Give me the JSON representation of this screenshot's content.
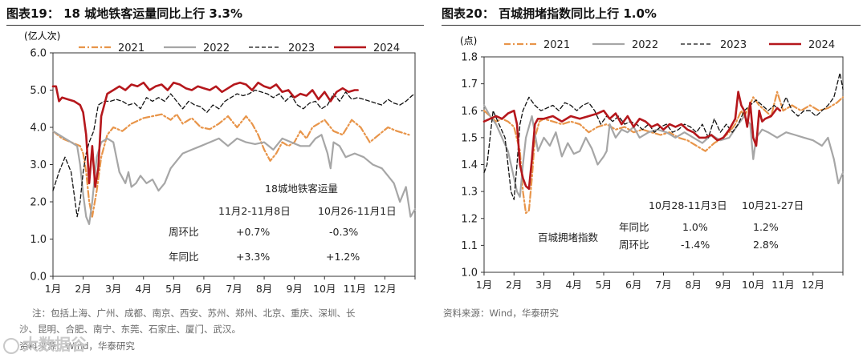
{
  "left_figure": {
    "title": "图表19： 18 城地铁客运量同比上行 3.3%",
    "notes": [
      "注：包括上海、广州、成都、南京、西安、苏州、郑州、北京、重庆、深圳、长",
      "沙、昆明、合肥、南宁、东莞、石家庄、厦门、武汉。",
      "资料来源：Wind，华泰研究"
    ],
    "watermark": "大数据谷"
  },
  "right_figure": {
    "title": "图表20： 百城拥堵指数同比上行 1.0%",
    "notes": [
      "资料来源：Wind，华泰研究"
    ]
  },
  "colors": {
    "2021": "#e8954a",
    "2022": "#a6a6a6",
    "2023": "#111111",
    "2024": "#b5171c"
  },
  "chart_data": [
    {
      "type": "line",
      "title": "18城地铁客运量",
      "ylabel": "(亿人次)",
      "ylim": [
        0,
        6
      ],
      "yticks": [
        "0.0",
        "1.0",
        "2.0",
        "3.0",
        "4.0",
        "5.0",
        "6.0"
      ],
      "categories": [
        "1月",
        "2月",
        "3月",
        "4月",
        "5月",
        "6月",
        "7月",
        "8月",
        "9月",
        "10月",
        "11月",
        "12月"
      ],
      "x_domain": [
        1,
        13
      ],
      "legend": [
        "2021",
        "2022",
        "2023",
        "2024"
      ],
      "legend_position": "top",
      "series": [
        {
          "name": "2021",
          "x": [
            1,
            1.3,
            1.6,
            1.9,
            2.0,
            2.1,
            2.2,
            2.3,
            2.45,
            2.6,
            2.8,
            3.0,
            3.3,
            3.6,
            4.0,
            4.3,
            4.6,
            4.9,
            5.1,
            5.3,
            5.6,
            5.9,
            6.2,
            6.5,
            6.8,
            7.1,
            7.4,
            7.6,
            7.8,
            8.0,
            8.2,
            8.4,
            8.6,
            8.8,
            9.0,
            9.2,
            9.4,
            9.6,
            9.8,
            10.0,
            10.3,
            10.6,
            10.9,
            11.2,
            11.5,
            11.8,
            12.1,
            12.4,
            12.8
          ],
          "y": [
            3.9,
            3.7,
            3.6,
            3.5,
            3.3,
            2.8,
            2.0,
            1.6,
            2.3,
            3.2,
            3.8,
            4.0,
            3.9,
            4.1,
            4.25,
            4.3,
            4.35,
            4.2,
            4.35,
            4.1,
            4.25,
            4.0,
            3.95,
            4.1,
            4.3,
            4.0,
            4.3,
            4.1,
            3.8,
            3.4,
            3.1,
            3.3,
            3.6,
            3.5,
            3.6,
            3.9,
            3.7,
            4.0,
            4.1,
            4.2,
            3.9,
            3.8,
            4.2,
            4.0,
            3.6,
            3.8,
            4.0,
            3.9,
            3.8
          ]
        },
        {
          "name": "2022",
          "x": [
            1,
            1.2,
            1.4,
            1.6,
            1.8,
            1.9,
            2.0,
            2.1,
            2.2,
            2.3,
            2.45,
            2.6,
            2.8,
            3.0,
            3.2,
            3.4,
            3.5,
            3.6,
            3.75,
            3.9,
            4.1,
            4.3,
            4.5,
            4.7,
            4.9,
            5.1,
            5.3,
            5.6,
            5.9,
            6.2,
            6.5,
            6.8,
            7.1,
            7.4,
            7.7,
            8.0,
            8.3,
            8.6,
            8.9,
            9.2,
            9.5,
            9.7,
            9.9,
            10.1,
            10.2,
            10.3,
            10.5,
            10.7,
            11.0,
            11.3,
            11.6,
            11.9,
            12.1,
            12.3,
            12.5,
            12.7,
            12.85,
            13.0
          ],
          "y": [
            3.9,
            3.8,
            3.7,
            3.6,
            3.5,
            3.0,
            2.2,
            1.6,
            1.4,
            2.0,
            3.2,
            3.6,
            3.7,
            3.6,
            2.8,
            2.5,
            2.8,
            2.4,
            2.5,
            2.7,
            2.5,
            2.6,
            2.3,
            2.5,
            2.9,
            3.1,
            3.3,
            3.4,
            3.5,
            3.6,
            3.7,
            3.5,
            3.7,
            3.6,
            3.55,
            3.6,
            3.4,
            3.7,
            3.6,
            3.5,
            3.5,
            3.7,
            3.8,
            3.3,
            2.9,
            3.6,
            3.5,
            3.2,
            3.3,
            3.2,
            3.0,
            2.9,
            2.7,
            2.5,
            2.0,
            2.4,
            1.6,
            1.8
          ]
        },
        {
          "name": "2023",
          "x": [
            1,
            1.2,
            1.4,
            1.6,
            1.8,
            1.9,
            2.0,
            2.1,
            2.2,
            2.35,
            2.5,
            2.7,
            2.9,
            3.1,
            3.3,
            3.5,
            3.7,
            3.9,
            4.1,
            4.3,
            4.5,
            4.7,
            4.9,
            5.1,
            5.3,
            5.5,
            5.7,
            5.9,
            6.1,
            6.3,
            6.5,
            6.7,
            6.9,
            7.1,
            7.3,
            7.5,
            7.7,
            7.9,
            8.1,
            8.3,
            8.5,
            8.7,
            8.9,
            9.1,
            9.3,
            9.5,
            9.7,
            9.9,
            10.1,
            10.3,
            10.5,
            10.7,
            10.9,
            11.1,
            11.3,
            11.5,
            11.7,
            11.9,
            12.1,
            12.3,
            12.5,
            12.7,
            12.9,
            13.0
          ],
          "y": [
            2.3,
            2.8,
            3.2,
            2.8,
            1.6,
            2.0,
            2.8,
            3.3,
            3.6,
            3.9,
            4.6,
            4.7,
            4.7,
            4.75,
            4.7,
            4.6,
            4.65,
            4.5,
            4.8,
            4.7,
            4.8,
            4.7,
            4.9,
            4.7,
            4.5,
            4.7,
            4.6,
            4.55,
            4.4,
            4.6,
            4.5,
            4.7,
            4.8,
            4.9,
            4.85,
            4.9,
            5.0,
            4.95,
            4.9,
            4.8,
            4.9,
            4.7,
            4.85,
            4.6,
            4.5,
            4.65,
            4.7,
            4.5,
            4.6,
            4.9,
            4.7,
            4.95,
            4.75,
            4.8,
            4.75,
            4.7,
            4.65,
            4.6,
            4.75,
            4.65,
            4.6,
            4.7,
            4.85,
            4.9
          ]
        },
        {
          "name": "2024",
          "x": [
            1,
            1.1,
            1.2,
            1.3,
            1.5,
            1.7,
            1.9,
            2.0,
            2.1,
            2.2,
            2.3,
            2.4,
            2.5,
            2.6,
            2.8,
            3.0,
            3.2,
            3.4,
            3.6,
            3.8,
            4.0,
            4.2,
            4.4,
            4.6,
            4.8,
            5.0,
            5.2,
            5.4,
            5.6,
            5.8,
            6.0,
            6.2,
            6.4,
            6.6,
            6.8,
            7.0,
            7.2,
            7.4,
            7.6,
            7.8,
            8.0,
            8.2,
            8.4,
            8.6,
            8.8,
            9.0,
            9.2,
            9.4,
            9.6,
            9.8,
            10.0,
            10.2,
            10.4,
            10.6,
            10.8,
            11.0,
            11.1
          ],
          "y": [
            5.1,
            5.1,
            4.7,
            4.8,
            4.75,
            4.7,
            4.6,
            4.4,
            3.8,
            2.5,
            3.5,
            2.4,
            2.9,
            4.3,
            4.9,
            5.0,
            5.1,
            5.0,
            5.15,
            5.1,
            5.2,
            5.0,
            5.1,
            5.15,
            5.0,
            5.2,
            5.15,
            5.05,
            5.0,
            5.1,
            5.05,
            5.0,
            5.1,
            4.95,
            5.05,
            5.15,
            5.2,
            5.15,
            5.0,
            5.2,
            5.1,
            5.05,
            5.15,
            4.95,
            5.0,
            4.8,
            4.9,
            4.85,
            5.0,
            4.75,
            4.95,
            4.7,
            4.95,
            5.05,
            4.95,
            5.0,
            5.0
          ]
        }
      ],
      "table": {
        "col1": "11月2-11月8日",
        "col2": "10月26-11月1日",
        "rows": [
          {
            "label": "周环比",
            "v1": "+0.7%",
            "v2": "-0.3%"
          },
          {
            "label": "年同比",
            "v1": "+3.3%",
            "v2": "+1.2%"
          }
        ]
      }
    },
    {
      "type": "line",
      "title": "百城拥堵指数",
      "ylabel": "(点)",
      "ylim": [
        1.0,
        1.8
      ],
      "yticks": [
        "1.0",
        "1.1",
        "1.2",
        "1.3",
        "1.4",
        "1.5",
        "1.6",
        "1.7",
        "1.8"
      ],
      "categories": [
        "1月",
        "2月",
        "3月",
        "4月",
        "5月",
        "6月",
        "7月",
        "8月",
        "9月",
        "10月",
        "11月",
        "12月"
      ],
      "x_domain": [
        1,
        13
      ],
      "legend": [
        "2021",
        "2022",
        "2023",
        "2024"
      ],
      "legend_position": "top",
      "series": [
        {
          "name": "2021",
          "x": [
            1,
            1.2,
            1.4,
            1.6,
            1.8,
            2.0,
            2.2,
            2.3,
            2.4,
            2.5,
            2.6,
            2.7,
            2.85,
            3.0,
            3.3,
            3.6,
            3.9,
            4.2,
            4.5,
            4.8,
            5.1,
            5.4,
            5.7,
            6.0,
            6.3,
            6.6,
            6.9,
            7.2,
            7.5,
            7.8,
            8.1,
            8.4,
            8.7,
            9.0,
            9.2,
            9.4,
            9.6,
            9.7,
            9.8,
            10.0,
            10.2,
            10.4,
            10.6,
            10.8,
            11.0,
            11.3,
            11.6,
            11.9,
            12.2,
            12.5,
            12.8,
            13.0
          ],
          "y": [
            1.6,
            1.58,
            1.56,
            1.57,
            1.56,
            1.54,
            1.45,
            1.3,
            1.22,
            1.23,
            1.35,
            1.5,
            1.56,
            1.57,
            1.56,
            1.55,
            1.56,
            1.55,
            1.52,
            1.54,
            1.55,
            1.53,
            1.54,
            1.52,
            1.53,
            1.52,
            1.51,
            1.52,
            1.5,
            1.49,
            1.47,
            1.45,
            1.48,
            1.5,
            1.52,
            1.55,
            1.6,
            1.58,
            1.6,
            1.65,
            1.62,
            1.6,
            1.58,
            1.67,
            1.6,
            1.62,
            1.6,
            1.62,
            1.6,
            1.61,
            1.63,
            1.65
          ]
        },
        {
          "name": "2022",
          "x": [
            1,
            1.2,
            1.4,
            1.6,
            1.8,
            2.0,
            2.1,
            2.2,
            2.3,
            2.4,
            2.6,
            2.8,
            3.0,
            3.2,
            3.4,
            3.6,
            3.8,
            4.0,
            4.2,
            4.4,
            4.6,
            4.8,
            5.0,
            5.1,
            5.2,
            5.4,
            5.6,
            5.8,
            6.0,
            6.2,
            6.5,
            6.8,
            7.1,
            7.4,
            7.7,
            8.0,
            8.3,
            8.6,
            8.9,
            9.2,
            9.5,
            9.7,
            9.9,
            10.0,
            10.1,
            10.3,
            10.5,
            10.8,
            11.1,
            11.4,
            11.7,
            12.0,
            12.3,
            12.5,
            12.7,
            12.85,
            13.0
          ],
          "y": [
            1.62,
            1.58,
            1.55,
            1.5,
            1.45,
            1.35,
            1.3,
            1.28,
            1.4,
            1.5,
            1.58,
            1.45,
            1.5,
            1.47,
            1.52,
            1.43,
            1.48,
            1.44,
            1.45,
            1.5,
            1.46,
            1.4,
            1.43,
            1.45,
            1.55,
            1.5,
            1.53,
            1.52,
            1.54,
            1.5,
            1.52,
            1.53,
            1.52,
            1.5,
            1.52,
            1.5,
            1.48,
            1.51,
            1.49,
            1.5,
            1.55,
            1.58,
            1.55,
            1.42,
            1.5,
            1.53,
            1.52,
            1.5,
            1.52,
            1.51,
            1.5,
            1.49,
            1.47,
            1.5,
            1.42,
            1.33,
            1.37
          ]
        },
        {
          "name": "2023",
          "x": [
            1,
            1.1,
            1.3,
            1.5,
            1.7,
            1.9,
            2.0,
            2.1,
            2.2,
            2.3,
            2.5,
            2.7,
            2.9,
            3.1,
            3.3,
            3.5,
            3.7,
            3.9,
            4.1,
            4.3,
            4.5,
            4.7,
            4.9,
            5.1,
            5.3,
            5.5,
            5.7,
            5.9,
            6.1,
            6.3,
            6.5,
            6.7,
            6.9,
            7.1,
            7.3,
            7.5,
            7.7,
            7.9,
            8.1,
            8.3,
            8.5,
            8.7,
            8.9,
            9.1,
            9.3,
            9.5,
            9.7,
            9.9,
            10.1,
            10.3,
            10.5,
            10.7,
            10.9,
            11.1,
            11.3,
            11.5,
            11.7,
            11.9,
            12.1,
            12.3,
            12.5,
            12.7,
            12.9,
            13.0
          ],
          "y": [
            1.37,
            1.4,
            1.6,
            1.55,
            1.5,
            1.3,
            1.27,
            1.4,
            1.55,
            1.6,
            1.65,
            1.62,
            1.6,
            1.61,
            1.62,
            1.6,
            1.63,
            1.62,
            1.6,
            1.62,
            1.63,
            1.6,
            1.55,
            1.58,
            1.56,
            1.58,
            1.55,
            1.56,
            1.55,
            1.53,
            1.55,
            1.52,
            1.54,
            1.55,
            1.52,
            1.53,
            1.55,
            1.54,
            1.52,
            1.55,
            1.5,
            1.57,
            1.52,
            1.55,
            1.52,
            1.55,
            1.6,
            1.62,
            1.64,
            1.62,
            1.6,
            1.62,
            1.6,
            1.65,
            1.6,
            1.58,
            1.6,
            1.6,
            1.58,
            1.6,
            1.62,
            1.65,
            1.74,
            1.68
          ]
        },
        {
          "name": "2024",
          "x": [
            1,
            1.2,
            1.4,
            1.6,
            1.8,
            2.0,
            2.1,
            2.2,
            2.3,
            2.4,
            2.5,
            2.6,
            2.7,
            2.8,
            3.0,
            3.3,
            3.6,
            3.9,
            4.2,
            4.5,
            4.8,
            5.0,
            5.2,
            5.4,
            5.6,
            5.8,
            6.0,
            6.2,
            6.4,
            6.6,
            6.8,
            7.0,
            7.2,
            7.4,
            7.6,
            7.8,
            8.0,
            8.2,
            8.4,
            8.6,
            8.8,
            9.0,
            9.2,
            9.4,
            9.5,
            9.6,
            9.7,
            9.8,
            9.9,
            10.0,
            10.1,
            10.2,
            10.3,
            10.4,
            10.6,
            10.8,
            10.9
          ],
          "y": [
            1.56,
            1.57,
            1.58,
            1.57,
            1.59,
            1.6,
            1.55,
            1.4,
            1.35,
            1.32,
            1.31,
            1.42,
            1.55,
            1.57,
            1.57,
            1.58,
            1.56,
            1.58,
            1.57,
            1.58,
            1.59,
            1.6,
            1.57,
            1.59,
            1.55,
            1.58,
            1.54,
            1.57,
            1.56,
            1.54,
            1.55,
            1.53,
            1.55,
            1.54,
            1.55,
            1.53,
            1.52,
            1.5,
            1.5,
            1.51,
            1.49,
            1.5,
            1.53,
            1.57,
            1.67,
            1.62,
            1.6,
            1.54,
            1.63,
            1.5,
            1.47,
            1.6,
            1.56,
            1.57,
            1.58,
            1.61,
            1.6
          ]
        }
      ],
      "table": {
        "col1": "10月28-11月3日",
        "col2": "10月21-27日",
        "rows": [
          {
            "label": "年同比",
            "v1": "1.0%",
            "v2": "1.2%"
          },
          {
            "label": "周环比",
            "v1": "-1.4%",
            "v2": "2.8%"
          }
        ]
      }
    }
  ]
}
